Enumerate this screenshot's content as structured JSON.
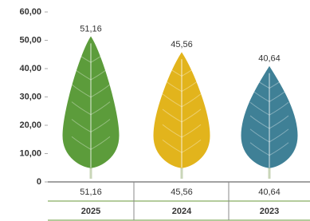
{
  "chart_data": {
    "type": "leaf",
    "categories": [
      "2025",
      "2024",
      "2023"
    ],
    "values": [
      51.16,
      45.56,
      40.64
    ],
    "value_labels": [
      "51,16",
      "45,56",
      "40,64"
    ],
    "colors": [
      "#5c9c3b",
      "#e2b41c",
      "#3f8096"
    ],
    "label_colors": [
      "#4f8a2a",
      "#e6a21f",
      "#3b7a8f"
    ],
    "ylim": [
      0,
      60
    ],
    "yticks": [
      {
        "value": 0,
        "label": "0"
      },
      {
        "value": 10,
        "label": "10,00"
      },
      {
        "value": 20,
        "label": "20,00"
      },
      {
        "value": 30,
        "label": "30,00"
      },
      {
        "value": 40,
        "label": "40,00"
      },
      {
        "value": 50,
        "label": "50,00"
      },
      {
        "value": 60,
        "label": "60,00"
      }
    ]
  }
}
